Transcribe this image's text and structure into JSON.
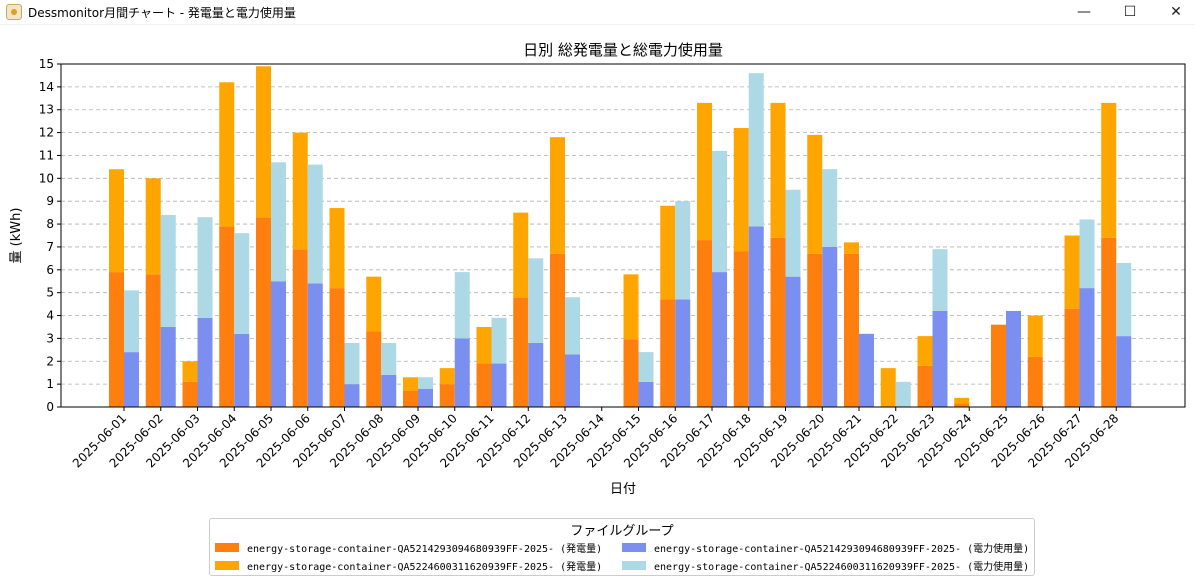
{
  "window": {
    "title": "Dessmonitor月間チャート - 発電量と電力使用量",
    "minimize_glyph": "—",
    "maximize_glyph": "☐",
    "close_glyph": "✕",
    "icon": "app-icon"
  },
  "chart_data": {
    "type": "bar",
    "stacked": true,
    "grouped": true,
    "title": "日別 総発電量と総電力使用量",
    "xlabel": "日付",
    "ylabel": "量 (kWh)",
    "ylim": [
      0,
      15
    ],
    "yticks": [
      0,
      1,
      2,
      3,
      4,
      5,
      6,
      7,
      8,
      9,
      10,
      11,
      12,
      13,
      14,
      15
    ],
    "grid": "y-dashed",
    "legend_position": "bottom-center",
    "categories": [
      "2025-06-01",
      "2025-06-02",
      "2025-06-03",
      "2025-06-04",
      "2025-06-05",
      "2025-06-06",
      "2025-06-07",
      "2025-06-08",
      "2025-06-09",
      "2025-06-10",
      "2025-06-11",
      "2025-06-12",
      "2025-06-13",
      "2025-06-14",
      "2025-06-15",
      "2025-06-16",
      "2025-06-17",
      "2025-06-18",
      "2025-06-19",
      "2025-06-20",
      "2025-06-21",
      "2025-06-22",
      "2025-06-23",
      "2025-06-24",
      "2025-06-25",
      "2025-06-26",
      "2025-06-27",
      "2025-06-28"
    ],
    "legend_title": "ファイルグループ",
    "series": [
      {
        "name": "energy-storage-container-QA5214293094680939FF-2025- (発電量)",
        "group": "発電量",
        "color": "#ff7f0e",
        "values": [
          5.9,
          5.8,
          1.1,
          7.9,
          8.3,
          6.9,
          5.2,
          3.3,
          0.7,
          1.0,
          1.9,
          4.8,
          6.7,
          0,
          2.95,
          4.7,
          7.3,
          6.8,
          7.4,
          6.7,
          6.7,
          0,
          1.8,
          0.15,
          3.6,
          2.2,
          4.3,
          7.4
        ]
      },
      {
        "name": "energy-storage-container-QA5224600311620939FF-2025- (発電量)",
        "group": "発電量",
        "color": "#ffa500",
        "values": [
          4.5,
          4.2,
          0.9,
          6.3,
          6.6,
          5.1,
          3.5,
          2.4,
          0.6,
          0.7,
          1.6,
          3.7,
          5.1,
          0,
          2.85,
          4.1,
          6.0,
          5.4,
          5.9,
          5.2,
          0.5,
          1.7,
          1.3,
          0.25,
          0,
          1.8,
          3.2,
          5.9
        ]
      },
      {
        "name": "energy-storage-container-QA5214293094680939FF-2025- (電力使用量)",
        "group": "電力使用量",
        "color": "#7b8ff0",
        "values": [
          2.4,
          3.5,
          3.9,
          3.2,
          5.5,
          5.4,
          1.0,
          1.4,
          0.8,
          3.0,
          1.9,
          2.8,
          2.3,
          0,
          1.1,
          4.7,
          5.9,
          7.9,
          5.7,
          7.0,
          3.2,
          0,
          4.2,
          0,
          4.2,
          0,
          5.2,
          3.1
        ]
      },
      {
        "name": "energy-storage-container-QA5224600311620939FF-2025- (電力使用量)",
        "group": "電力使用量",
        "color": "#add8e6",
        "values": [
          2.7,
          4.9,
          4.4,
          4.4,
          5.2,
          5.2,
          1.8,
          1.4,
          0.5,
          2.9,
          2.0,
          3.7,
          2.5,
          0,
          1.3,
          4.3,
          5.3,
          6.7,
          3.8,
          3.4,
          0,
          1.1,
          2.7,
          0,
          0,
          0,
          3.0,
          3.2
        ]
      }
    ]
  }
}
